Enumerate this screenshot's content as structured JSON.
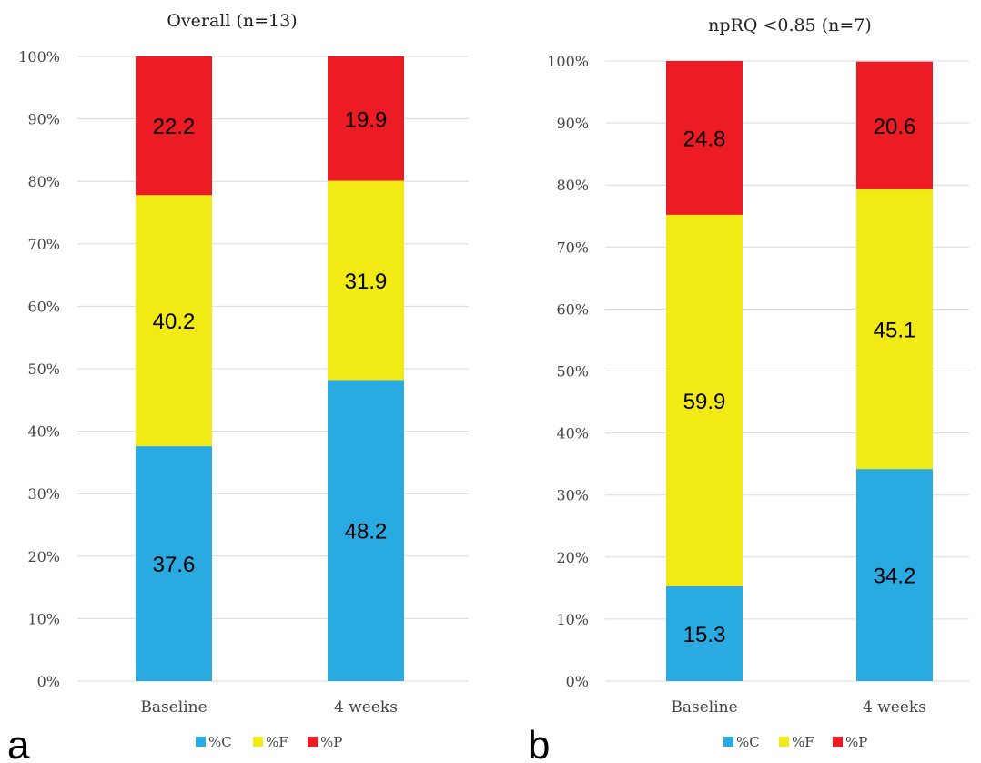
{
  "colors": {
    "C": "#29ABE2",
    "F": "#F2EA14",
    "P": "#ED1C24"
  },
  "chart_data": [
    {
      "type": "bar",
      "stacked": true,
      "panel_label": "a",
      "title": "Overall  (n=13)",
      "categories": [
        "Baseline",
        "4 weeks"
      ],
      "series": [
        {
          "name": "%C",
          "values": [
            37.6,
            48.2
          ]
        },
        {
          "name": "%F",
          "values": [
            40.2,
            31.9
          ]
        },
        {
          "name": "%P",
          "values": [
            22.2,
            19.9
          ]
        }
      ],
      "ylim": [
        0,
        100
      ],
      "yticks": [
        "0%",
        "10%",
        "20%",
        "30%",
        "40%",
        "50%",
        "60%",
        "70%",
        "80%",
        "90%",
        "100%"
      ],
      "grid": true,
      "legend": "bottom"
    },
    {
      "type": "bar",
      "stacked": true,
      "panel_label": "b",
      "title": "npRQ <0.85 (n=7)",
      "categories": [
        "Baseline",
        "4 weeks"
      ],
      "series": [
        {
          "name": "%C",
          "values": [
            15.3,
            34.2
          ]
        },
        {
          "name": "%F",
          "values": [
            59.9,
            45.1
          ]
        },
        {
          "name": "%P",
          "values": [
            24.8,
            20.6
          ]
        }
      ],
      "ylim": [
        0,
        100
      ],
      "yticks": [
        "0%",
        "10%",
        "20%",
        "30%",
        "40%",
        "50%",
        "60%",
        "70%",
        "80%",
        "90%",
        "100%"
      ],
      "grid": true,
      "legend": "bottom"
    }
  ]
}
